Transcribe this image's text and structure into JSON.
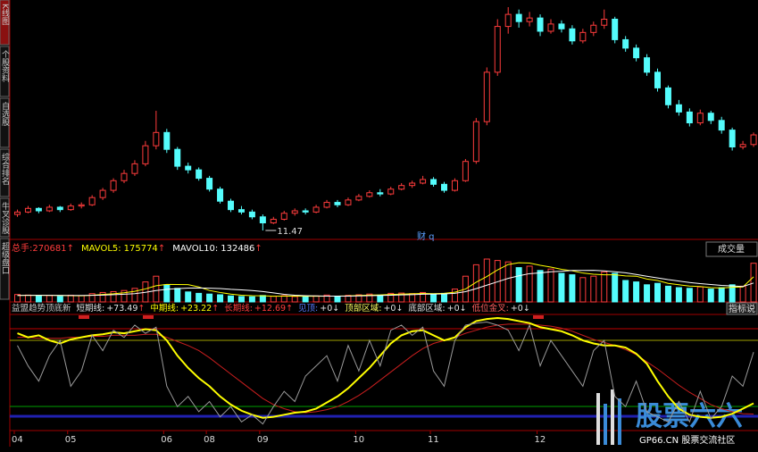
{
  "sidebar_tabs": [
    "K线图",
    "个股资料",
    "自选股",
    "综合排名",
    "牛叉诊股",
    "超级盘口"
  ],
  "chart_data": {
    "type": "candlestick",
    "categories": [
      "04",
      null,
      null,
      null,
      null,
      "05",
      null,
      null,
      null,
      null,
      null,
      null,
      null,
      null,
      "06",
      null,
      null,
      null,
      "08",
      null,
      null,
      null,
      null,
      "09",
      null,
      null,
      null,
      null,
      null,
      null,
      null,
      null,
      "10",
      null,
      null,
      null,
      null,
      null,
      null,
      "11",
      null,
      null,
      null,
      null,
      null,
      null,
      null,
      null,
      null,
      "12",
      null,
      null,
      null,
      null,
      null,
      null,
      null,
      null,
      null,
      null,
      null,
      null,
      null,
      null,
      null,
      null,
      null,
      null,
      null,
      null
    ],
    "ohlc": [
      [
        12.8,
        13.2,
        12.6,
        13.0
      ],
      [
        13.0,
        13.5,
        12.9,
        13.3
      ],
      [
        13.3,
        13.4,
        12.9,
        13.1
      ],
      [
        13.1,
        13.6,
        13.0,
        13.4
      ],
      [
        13.4,
        13.5,
        13.0,
        13.2
      ],
      [
        13.2,
        13.7,
        13.1,
        13.5
      ],
      [
        13.5,
        13.8,
        13.3,
        13.6
      ],
      [
        13.6,
        14.4,
        13.5,
        14.2
      ],
      [
        14.2,
        15.0,
        14.0,
        14.8
      ],
      [
        14.8,
        15.8,
        14.6,
        15.6
      ],
      [
        15.6,
        16.5,
        15.4,
        16.2
      ],
      [
        16.2,
        17.3,
        16.0,
        17.0
      ],
      [
        17.0,
        18.9,
        16.8,
        18.5
      ],
      [
        18.5,
        21.4,
        18.2,
        19.6
      ],
      [
        19.6,
        19.9,
        17.9,
        18.2
      ],
      [
        18.2,
        18.4,
        16.5,
        16.8
      ],
      [
        16.8,
        17.1,
        16.2,
        16.5
      ],
      [
        16.5,
        16.7,
        15.6,
        15.8
      ],
      [
        15.8,
        16.0,
        14.7,
        14.9
      ],
      [
        14.9,
        15.1,
        13.7,
        13.9
      ],
      [
        13.9,
        14.1,
        13.0,
        13.2
      ],
      [
        13.2,
        13.5,
        12.8,
        13.0
      ],
      [
        13.0,
        13.2,
        12.4,
        12.6
      ],
      [
        12.6,
        12.8,
        11.47,
        12.1
      ],
      [
        12.1,
        12.6,
        12.0,
        12.4
      ],
      [
        12.4,
        13.1,
        12.3,
        12.9
      ],
      [
        12.9,
        13.3,
        12.7,
        13.1
      ],
      [
        13.1,
        13.3,
        12.8,
        13.0
      ],
      [
        13.0,
        13.6,
        12.9,
        13.4
      ],
      [
        13.4,
        14.0,
        13.3,
        13.8
      ],
      [
        13.8,
        14.0,
        13.4,
        13.6
      ],
      [
        13.6,
        14.2,
        13.5,
        14.0
      ],
      [
        14.0,
        14.5,
        13.9,
        14.3
      ],
      [
        14.3,
        14.8,
        14.2,
        14.6
      ],
      [
        14.6,
        14.9,
        14.3,
        14.5
      ],
      [
        14.5,
        15.1,
        14.4,
        14.9
      ],
      [
        14.9,
        15.4,
        14.8,
        15.2
      ],
      [
        15.2,
        15.6,
        15.0,
        15.4
      ],
      [
        15.4,
        16.0,
        15.3,
        15.7
      ],
      [
        15.7,
        15.9,
        15.1,
        15.3
      ],
      [
        15.3,
        15.5,
        14.6,
        14.8
      ],
      [
        14.8,
        15.8,
        14.7,
        15.6
      ],
      [
        15.6,
        17.4,
        15.5,
        17.2
      ],
      [
        17.2,
        20.8,
        17.0,
        20.5
      ],
      [
        20.5,
        25.0,
        20.2,
        24.6
      ],
      [
        24.6,
        29.0,
        24.3,
        28.4
      ],
      [
        28.4,
        30.0,
        27.8,
        29.4
      ],
      [
        29.4,
        29.8,
        28.3,
        28.8
      ],
      [
        28.8,
        29.6,
        28.4,
        29.1
      ],
      [
        29.1,
        29.4,
        27.6,
        28.0
      ],
      [
        28.0,
        29.0,
        27.8,
        28.6
      ],
      [
        28.6,
        28.9,
        27.9,
        28.2
      ],
      [
        28.2,
        28.5,
        26.9,
        27.2
      ],
      [
        27.2,
        28.2,
        27.0,
        27.9
      ],
      [
        27.9,
        28.8,
        27.6,
        28.5
      ],
      [
        28.5,
        29.8,
        28.2,
        29.0
      ],
      [
        29.0,
        29.2,
        27.0,
        27.3
      ],
      [
        27.3,
        27.6,
        26.3,
        26.6
      ],
      [
        26.6,
        26.9,
        25.5,
        25.8
      ],
      [
        25.8,
        26.1,
        24.3,
        24.6
      ],
      [
        24.6,
        24.9,
        23.0,
        23.3
      ],
      [
        23.3,
        23.5,
        21.6,
        21.9
      ],
      [
        21.9,
        22.3,
        21.0,
        21.3
      ],
      [
        21.3,
        21.6,
        20.1,
        20.4
      ],
      [
        20.4,
        21.5,
        20.2,
        21.2
      ],
      [
        21.2,
        21.4,
        20.3,
        20.6
      ],
      [
        20.6,
        20.9,
        19.5,
        19.8
      ],
      [
        19.8,
        20.0,
        18.1,
        18.4
      ],
      [
        18.4,
        18.9,
        18.2,
        18.6
      ],
      [
        18.6,
        19.6,
        18.4,
        19.4
      ]
    ],
    "up_color": "#ff3c3c",
    "down_color": "#54fcfc",
    "low_annotation": "11.47",
    "marker": "财 q",
    "volume": {
      "label": "总手:",
      "arrow": "↑",
      "title": "成交量",
      "values": [
        52000,
        48000,
        41000,
        45000,
        39000,
        47000,
        44000,
        58000,
        66000,
        72000,
        80000,
        95000,
        140000,
        180000,
        120000,
        95000,
        70000,
        60000,
        55000,
        50000,
        42000,
        38000,
        36000,
        45000,
        40000,
        44000,
        38000,
        35000,
        42000,
        48000,
        40000,
        46000,
        50000,
        55000,
        48000,
        60000,
        62000,
        58000,
        66000,
        54000,
        60000,
        90000,
        180000,
        260000,
        300000,
        290000,
        280000,
        240000,
        250000,
        220000,
        230000,
        200000,
        190000,
        170000,
        180000,
        210000,
        200000,
        150000,
        140000,
        120000,
        130000,
        110000,
        100000,
        95000,
        105000,
        90000,
        100000,
        120000,
        110000,
        270681
      ],
      "ma": [
        {
          "name": "MAVOL5:",
          "color": "#ffff00",
          "arrow": "↑",
          "values": [
            45000,
            47000,
            46000,
            46000,
            45000,
            44000,
            43000,
            47000,
            52000,
            57000,
            64000,
            74000,
            91000,
            113000,
            123000,
            122000,
            121000,
            105000,
            80000,
            66000,
            55000,
            47000,
            44000,
            43000,
            40000,
            41000,
            41000,
            40000,
            40000,
            41000,
            41000,
            42000,
            45000,
            48000,
            49000,
            52000,
            55000,
            57000,
            59000,
            58000,
            60000,
            68000,
            90000,
            138000,
            178000,
            224000,
            262000,
            274000,
            272000,
            256000,
            244000,
            228000,
            218000,
            202000,
            194000,
            190000,
            190000,
            182000,
            180000,
            160000,
            150000,
            130000,
            120000,
            111000,
            108000,
            100000,
            98000,
            102000,
            105000,
            175774
          ]
        },
        {
          "name": "MAVOL10:",
          "color": "#ffffff",
          "arrow": "↑",
          "values": [
            45000,
            46000,
            46000,
            46000,
            45000,
            45000,
            45000,
            46000,
            48000,
            51000,
            54000,
            58000,
            67000,
            80000,
            88000,
            93000,
            97000,
            98000,
            96000,
            94000,
            88000,
            84000,
            80000,
            73000,
            63000,
            53000,
            47000,
            44000,
            42000,
            41000,
            41000,
            41000,
            42000,
            44000,
            45000,
            47000,
            49000,
            51000,
            54000,
            55000,
            56000,
            60000,
            72000,
            93000,
            117000,
            141000,
            165000,
            183000,
            198000,
            203000,
            211000,
            215000,
            220000,
            220000,
            221000,
            217000,
            211000,
            204000,
            192000,
            180000,
            168000,
            156000,
            146000,
            136000,
            128000,
            122000,
            116000,
            112000,
            108000,
            132486
          ]
        }
      ]
    },
    "indicator": {
      "title": "益盟趋势顶底新",
      "button": "指标说",
      "series": [
        {
          "name": "短期线:",
          "color": "#9a9a9a",
          "label_color": "#e0e0e0",
          "value_label": "+73.49",
          "arrow": "↑",
          "values": [
            80,
            60,
            45,
            70,
            85,
            40,
            55,
            90,
            75,
            95,
            88,
            100,
            92,
            98,
            40,
            20,
            30,
            15,
            25,
            10,
            20,
            5,
            12,
            3,
            20,
            35,
            25,
            50,
            60,
            70,
            45,
            80,
            55,
            85,
            60,
            95,
            100,
            90,
            98,
            55,
            40,
            85,
            100,
            102,
            103,
            100,
            95,
            75,
            100,
            60,
            85,
            70,
            55,
            40,
            75,
            85,
            30,
            20,
            45,
            15,
            10,
            5,
            25,
            5,
            35,
            8,
            20,
            50,
            40,
            73.49
          ]
        },
        {
          "name": "中期线:",
          "color": "#ffff00",
          "label_color": "#ffff00",
          "value_label": "+23.22",
          "arrow": "↑",
          "values": [
            92,
            88,
            90,
            85,
            82,
            86,
            88,
            90,
            91,
            93,
            92,
            94,
            96,
            95,
            85,
            70,
            58,
            48,
            40,
            30,
            22,
            16,
            12,
            9,
            10,
            12,
            14,
            15,
            18,
            24,
            30,
            38,
            48,
            58,
            70,
            82,
            90,
            94,
            95,
            90,
            85,
            88,
            98,
            104,
            106,
            107,
            106,
            104,
            102,
            98,
            96,
            94,
            90,
            85,
            82,
            80,
            80,
            78,
            72,
            62,
            45,
            30,
            18,
            12,
            10,
            9,
            10,
            13,
            18,
            23.22
          ]
        },
        {
          "name": "长期线:",
          "color": "#c81e1e",
          "label_color": "#ff3c3c",
          "value_label": "+12.69",
          "arrow": "↑",
          "values": [
            88,
            88,
            87,
            87,
            87,
            88,
            88,
            89,
            89,
            90,
            90,
            90,
            91,
            91,
            88,
            84,
            80,
            75,
            68,
            60,
            52,
            44,
            36,
            28,
            22,
            18,
            15,
            14,
            15,
            17,
            20,
            25,
            31,
            38,
            46,
            54,
            62,
            70,
            77,
            82,
            85,
            88,
            92,
            95,
            98,
            100,
            101,
            101,
            101,
            100,
            99,
            97,
            94,
            90,
            86,
            83,
            80,
            76,
            71,
            64,
            57,
            49,
            41,
            34,
            28,
            22,
            18,
            15,
            13,
            12.69
          ]
        }
      ],
      "signals": [
        {
          "name": "见顶:",
          "value": 0,
          "value_label": "+0",
          "arrow": "↓",
          "color": "#5a7cff"
        },
        {
          "name": "顶部区域:",
          "value": 0,
          "value_label": "+0",
          "arrow": "↓",
          "color": "#ffff60"
        },
        {
          "name": "底部区域:",
          "value": 0,
          "value_label": "+0",
          "arrow": "↓",
          "color": "#e0e0e0"
        },
        {
          "name": "低位金叉:",
          "value": 0,
          "value_label": "+0",
          "arrow": "↓",
          "color": "#ff6060"
        }
      ]
    }
  },
  "watermark": {
    "title": "股票六六",
    "subtitle": "GP66.CN 股票交流社区"
  }
}
